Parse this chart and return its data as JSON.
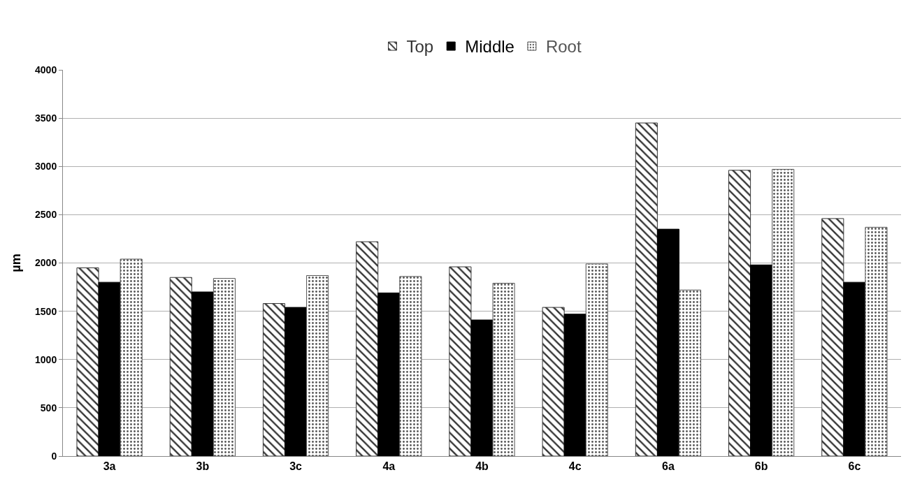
{
  "chart_data": {
    "type": "bar",
    "ylabel": "µm",
    "categories": [
      "3a",
      "3b",
      "3c",
      "4a",
      "4b",
      "4c",
      "6a",
      "6b",
      "6c"
    ],
    "series": [
      {
        "name": "Top",
        "color": "#333333",
        "values": [
          1950,
          1850,
          1580,
          2220,
          1960,
          1540,
          3450,
          2960,
          2460
        ]
      },
      {
        "name": "Middle",
        "color": "#000000",
        "values": [
          1800,
          1700,
          1540,
          1690,
          1410,
          1470,
          2350,
          1980,
          1800
        ]
      },
      {
        "name": "Root",
        "color": "#555555",
        "values": [
          2040,
          1840,
          1870,
          1860,
          1790,
          1990,
          1720,
          2970,
          2370
        ]
      }
    ],
    "ylim": [
      0,
      4000
    ],
    "yticks": [
      0,
      500,
      1000,
      1500,
      2000,
      2500,
      3000,
      3500,
      4000
    ],
    "grid": "y",
    "legend": "top"
  }
}
